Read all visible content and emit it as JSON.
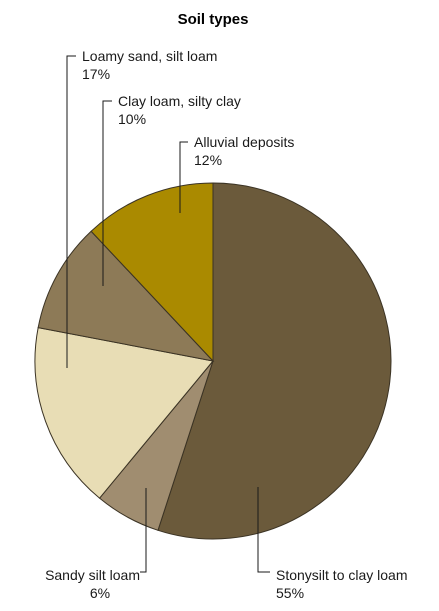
{
  "chart_data": {
    "type": "pie",
    "title": "Soil types",
    "slices": [
      {
        "label": "Stonysilt to clay loam",
        "value": 55,
        "value_label": "55%",
        "color": "#6b5a3b"
      },
      {
        "label": "Sandy silt loam",
        "value": 6,
        "value_label": "6%",
        "color": "#a08d70"
      },
      {
        "label": "Loamy sand, silt loam",
        "value": 17,
        "value_label": "17%",
        "color": "#e8ddb5"
      },
      {
        "label": "Clay loam, silty clay",
        "value": 10,
        "value_label": "10%",
        "color": "#8d7a57"
      },
      {
        "label": "Alluvial deposits",
        "value": 12,
        "value_label": "12%",
        "color": "#aa8a00"
      }
    ]
  }
}
